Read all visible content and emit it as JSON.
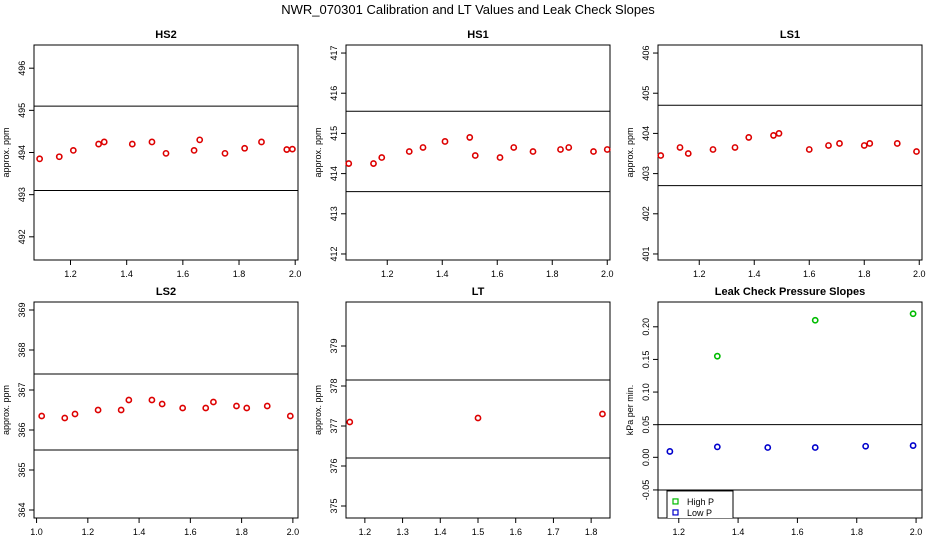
{
  "title": "NWR_070301  Calibration and LT Values and Leak Check Slopes",
  "colors": {
    "red_points": "#dd0000",
    "green_points": "#00bb00",
    "blue_points": "#0000cc",
    "lines": "#000000"
  },
  "chart_data": [
    {
      "type": "scatter",
      "title": "HS2",
      "ylabel": "approx. ppm",
      "xlim": [
        1.07,
        2.01
      ],
      "ylim": [
        491.45,
        496.55
      ],
      "xticks": [
        "1.2",
        "1.4",
        "1.6",
        "1.8",
        "2.0"
      ],
      "xtick_values": [
        1.2,
        1.4,
        1.6,
        1.8,
        2.0
      ],
      "yticks": [
        "492",
        "493",
        "494",
        "495",
        "496"
      ],
      "ytick_values": [
        492,
        493,
        494,
        495,
        496
      ],
      "hlines": [
        495.1,
        493.1
      ],
      "x": [
        1.09,
        1.16,
        1.21,
        1.3,
        1.32,
        1.42,
        1.49,
        1.54,
        1.64,
        1.66,
        1.75,
        1.82,
        1.88,
        1.97,
        1.99
      ],
      "y": [
        493.85,
        493.9,
        494.05,
        494.2,
        494.25,
        494.2,
        494.25,
        493.98,
        494.05,
        494.3,
        493.98,
        494.1,
        494.25,
        494.07,
        494.08
      ]
    },
    {
      "type": "scatter",
      "title": "HS1",
      "ylabel": "approx. ppm",
      "xlim": [
        1.05,
        2.01
      ],
      "ylim": [
        411.85,
        417.2
      ],
      "xticks": [
        "1.2",
        "1.4",
        "1.6",
        "1.8",
        "2.0"
      ],
      "xtick_values": [
        1.2,
        1.4,
        1.6,
        1.8,
        2.0
      ],
      "yticks": [
        "412",
        "413",
        "414",
        "415",
        "416",
        "417"
      ],
      "ytick_values": [
        412,
        413,
        414,
        415,
        416,
        417
      ],
      "hlines": [
        415.55,
        413.55
      ],
      "x": [
        1.06,
        1.15,
        1.18,
        1.28,
        1.33,
        1.41,
        1.5,
        1.52,
        1.61,
        1.66,
        1.73,
        1.83,
        1.86,
        1.95,
        2.0
      ],
      "y": [
        414.25,
        414.25,
        414.4,
        414.55,
        414.65,
        414.8,
        414.9,
        414.45,
        414.4,
        414.65,
        414.55,
        414.6,
        414.65,
        414.55,
        414.6
      ]
    },
    {
      "type": "scatter",
      "title": "LS1",
      "ylabel": "approx. ppm",
      "xlim": [
        1.05,
        2.01
      ],
      "ylim": [
        400.85,
        406.2
      ],
      "xticks": [
        "1.2",
        "1.4",
        "1.6",
        "1.8",
        "2.0"
      ],
      "xtick_values": [
        1.2,
        1.4,
        1.6,
        1.8,
        2.0
      ],
      "yticks": [
        "401",
        "402",
        "403",
        "404",
        "405",
        "406"
      ],
      "ytick_values": [
        401,
        402,
        403,
        404,
        405,
        406
      ],
      "hlines": [
        404.7,
        402.7
      ],
      "x": [
        1.06,
        1.13,
        1.16,
        1.25,
        1.33,
        1.38,
        1.47,
        1.49,
        1.6,
        1.67,
        1.71,
        1.8,
        1.82,
        1.92,
        1.99
      ],
      "y": [
        403.45,
        403.65,
        403.5,
        403.6,
        403.65,
        403.9,
        403.95,
        404.0,
        403.6,
        403.7,
        403.75,
        403.7,
        403.75,
        403.75,
        403.55
      ]
    },
    {
      "type": "scatter",
      "title": "LS2",
      "ylabel": "approx. ppm",
      "xlim": [
        0.99,
        2.02
      ],
      "ylim": [
        363.8,
        369.2
      ],
      "xticks": [
        "1.0",
        "1.2",
        "1.4",
        "1.6",
        "1.8",
        "2.0"
      ],
      "xtick_values": [
        1.0,
        1.2,
        1.4,
        1.6,
        1.8,
        2.0
      ],
      "yticks": [
        "364",
        "365",
        "366",
        "367",
        "368",
        "369"
      ],
      "ytick_values": [
        364,
        365,
        366,
        367,
        368,
        369
      ],
      "hlines": [
        367.4,
        365.5
      ],
      "x": [
        1.02,
        1.11,
        1.15,
        1.24,
        1.33,
        1.36,
        1.45,
        1.49,
        1.57,
        1.66,
        1.69,
        1.78,
        1.82,
        1.9,
        1.99
      ],
      "y": [
        366.35,
        366.3,
        366.4,
        366.5,
        366.5,
        366.75,
        366.75,
        366.65,
        366.55,
        366.55,
        366.7,
        366.6,
        366.55,
        366.6,
        366.35
      ]
    },
    {
      "type": "scatter",
      "title": "LT",
      "ylabel": "approx. ppm",
      "xlim": [
        1.15,
        1.85
      ],
      "ylim": [
        374.7,
        380.1
      ],
      "xticks": [
        "1.2",
        "1.3",
        "1.4",
        "1.5",
        "1.6",
        "1.7",
        "1.8"
      ],
      "xtick_values": [
        1.2,
        1.3,
        1.4,
        1.5,
        1.6,
        1.7,
        1.8
      ],
      "yticks": [
        "375",
        "376",
        "377",
        "378",
        "379"
      ],
      "ytick_values": [
        375,
        376,
        377,
        378,
        379
      ],
      "hlines": [
        378.15,
        376.2
      ],
      "x": [
        1.16,
        1.5,
        1.83
      ],
      "y": [
        377.1,
        377.2,
        377.3
      ]
    },
    {
      "type": "scatter",
      "title": "Leak Check Pressure Slopes",
      "ylabel": "kPa per min.",
      "xlim": [
        1.13,
        2.02
      ],
      "ylim": [
        -0.093,
        0.238
      ],
      "xticks": [
        "1.2",
        "1.4",
        "1.6",
        "1.8",
        "2.0"
      ],
      "xtick_values": [
        1.2,
        1.4,
        1.6,
        1.8,
        2.0
      ],
      "yticks": [
        "-0.05",
        "0.00",
        "0.05",
        "0.10",
        "0.15",
        "0.20"
      ],
      "ytick_values": [
        -0.05,
        0.0,
        0.05,
        0.1,
        0.15,
        0.2
      ],
      "hlines": [
        0.05,
        -0.05
      ],
      "series": [
        {
          "name": "High P",
          "x": [
            1.33,
            1.66,
            1.99
          ],
          "y": [
            0.155,
            0.21,
            0.22
          ]
        },
        {
          "name": "Low P",
          "x": [
            1.17,
            1.33,
            1.5,
            1.66,
            1.83,
            1.99
          ],
          "y": [
            0.009,
            0.016,
            0.015,
            0.015,
            0.017,
            0.018
          ]
        }
      ],
      "legend": "bottom-left"
    }
  ]
}
